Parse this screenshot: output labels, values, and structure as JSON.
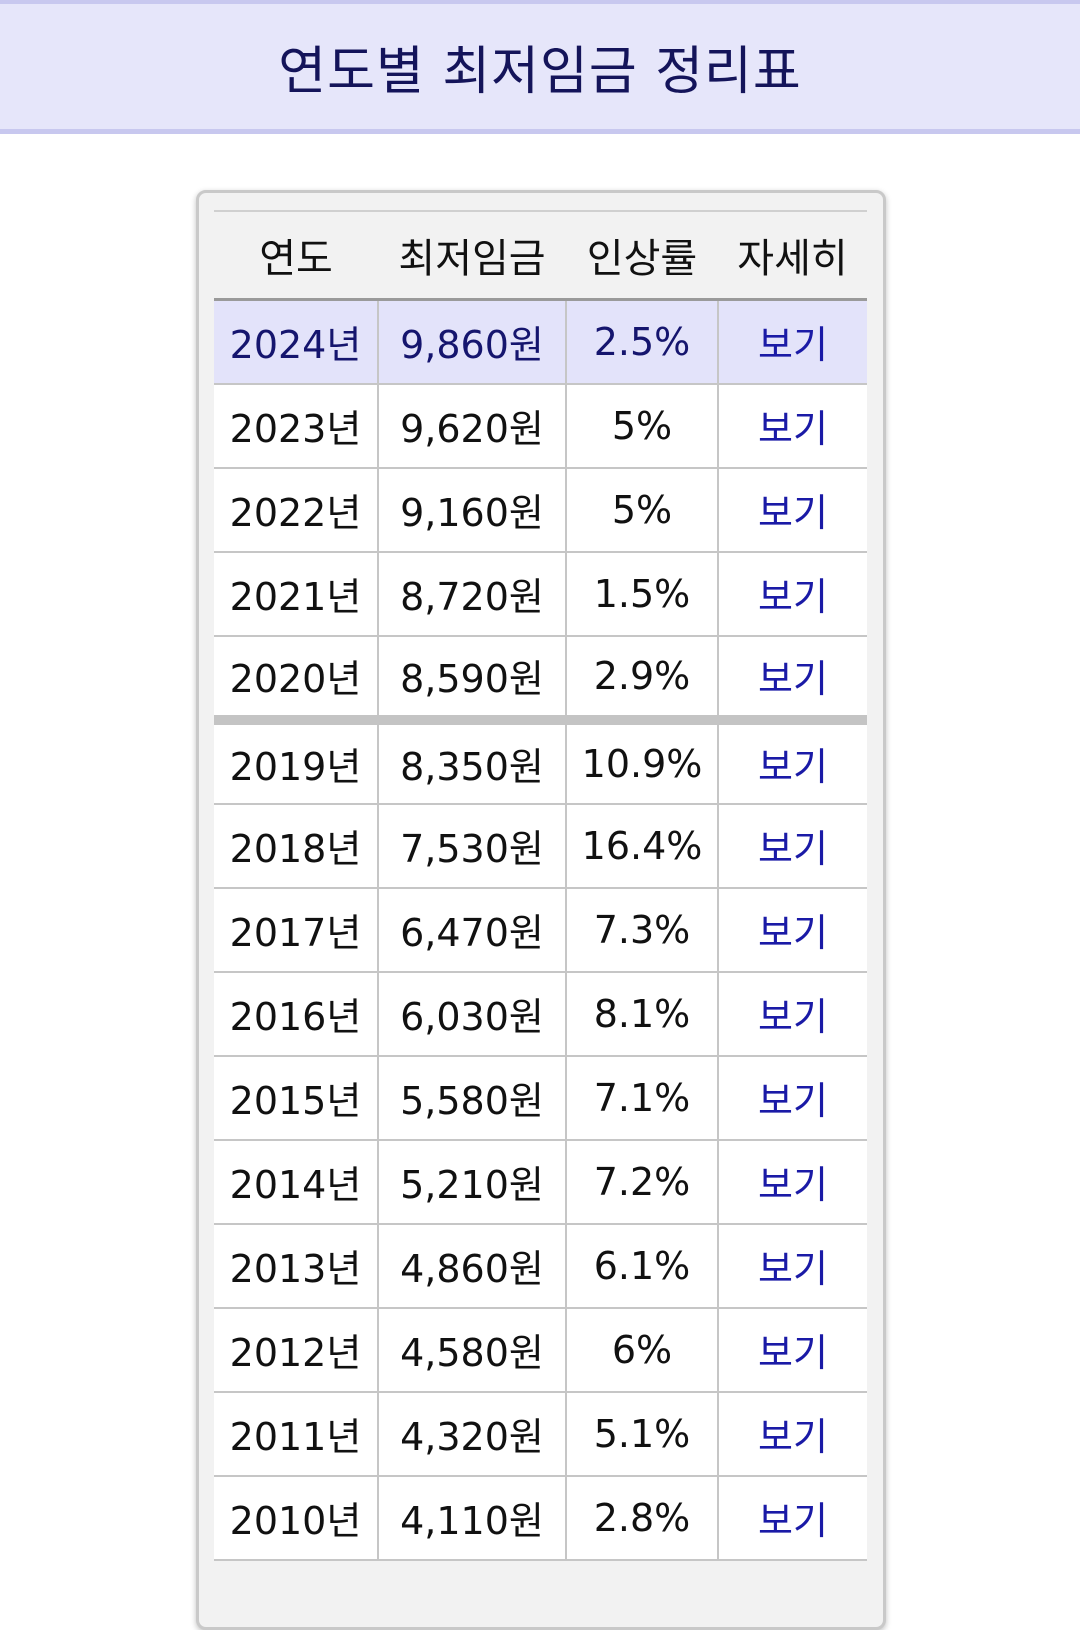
{
  "header": {
    "title": "연도별 최저임금 정리표"
  },
  "table": {
    "columns": [
      "연도",
      "최저임금",
      "인상률",
      "자세히"
    ],
    "rows": [
      {
        "year": "2024년",
        "wage": "9,860원",
        "rate": "2.5%",
        "link": "보기"
      },
      {
        "year": "2023년",
        "wage": "9,620원",
        "rate": "5%",
        "link": "보기"
      },
      {
        "year": "2022년",
        "wage": "9,160원",
        "rate": "5%",
        "link": "보기"
      },
      {
        "year": "2021년",
        "wage": "8,720원",
        "rate": "1.5%",
        "link": "보기"
      },
      {
        "year": "2020년",
        "wage": "8,590원",
        "rate": "2.9%",
        "link": "보기"
      },
      {
        "year": "2019년",
        "wage": "8,350원",
        "rate": "10.9%",
        "link": "보기"
      },
      {
        "year": "2018년",
        "wage": "7,530원",
        "rate": "16.4%",
        "link": "보기"
      },
      {
        "year": "2017년",
        "wage": "6,470원",
        "rate": "7.3%",
        "link": "보기"
      },
      {
        "year": "2016년",
        "wage": "6,030원",
        "rate": "8.1%",
        "link": "보기"
      },
      {
        "year": "2015년",
        "wage": "5,580원",
        "rate": "7.1%",
        "link": "보기"
      },
      {
        "year": "2014년",
        "wage": "5,210원",
        "rate": "7.2%",
        "link": "보기"
      },
      {
        "year": "2013년",
        "wage": "4,860원",
        "rate": "6.1%",
        "link": "보기"
      },
      {
        "year": "2012년",
        "wage": "4,580원",
        "rate": "6%",
        "link": "보기"
      },
      {
        "year": "2011년",
        "wage": "4,320원",
        "rate": "5.1%",
        "link": "보기"
      },
      {
        "year": "2010년",
        "wage": "4,110원",
        "rate": "2.8%",
        "link": "보기"
      }
    ]
  },
  "colors": {
    "header_bg": "#e6e6fa",
    "title_text": "#14145a",
    "highlight_row_bg": "#e3e3fa",
    "link_text": "#1a1aa6"
  }
}
